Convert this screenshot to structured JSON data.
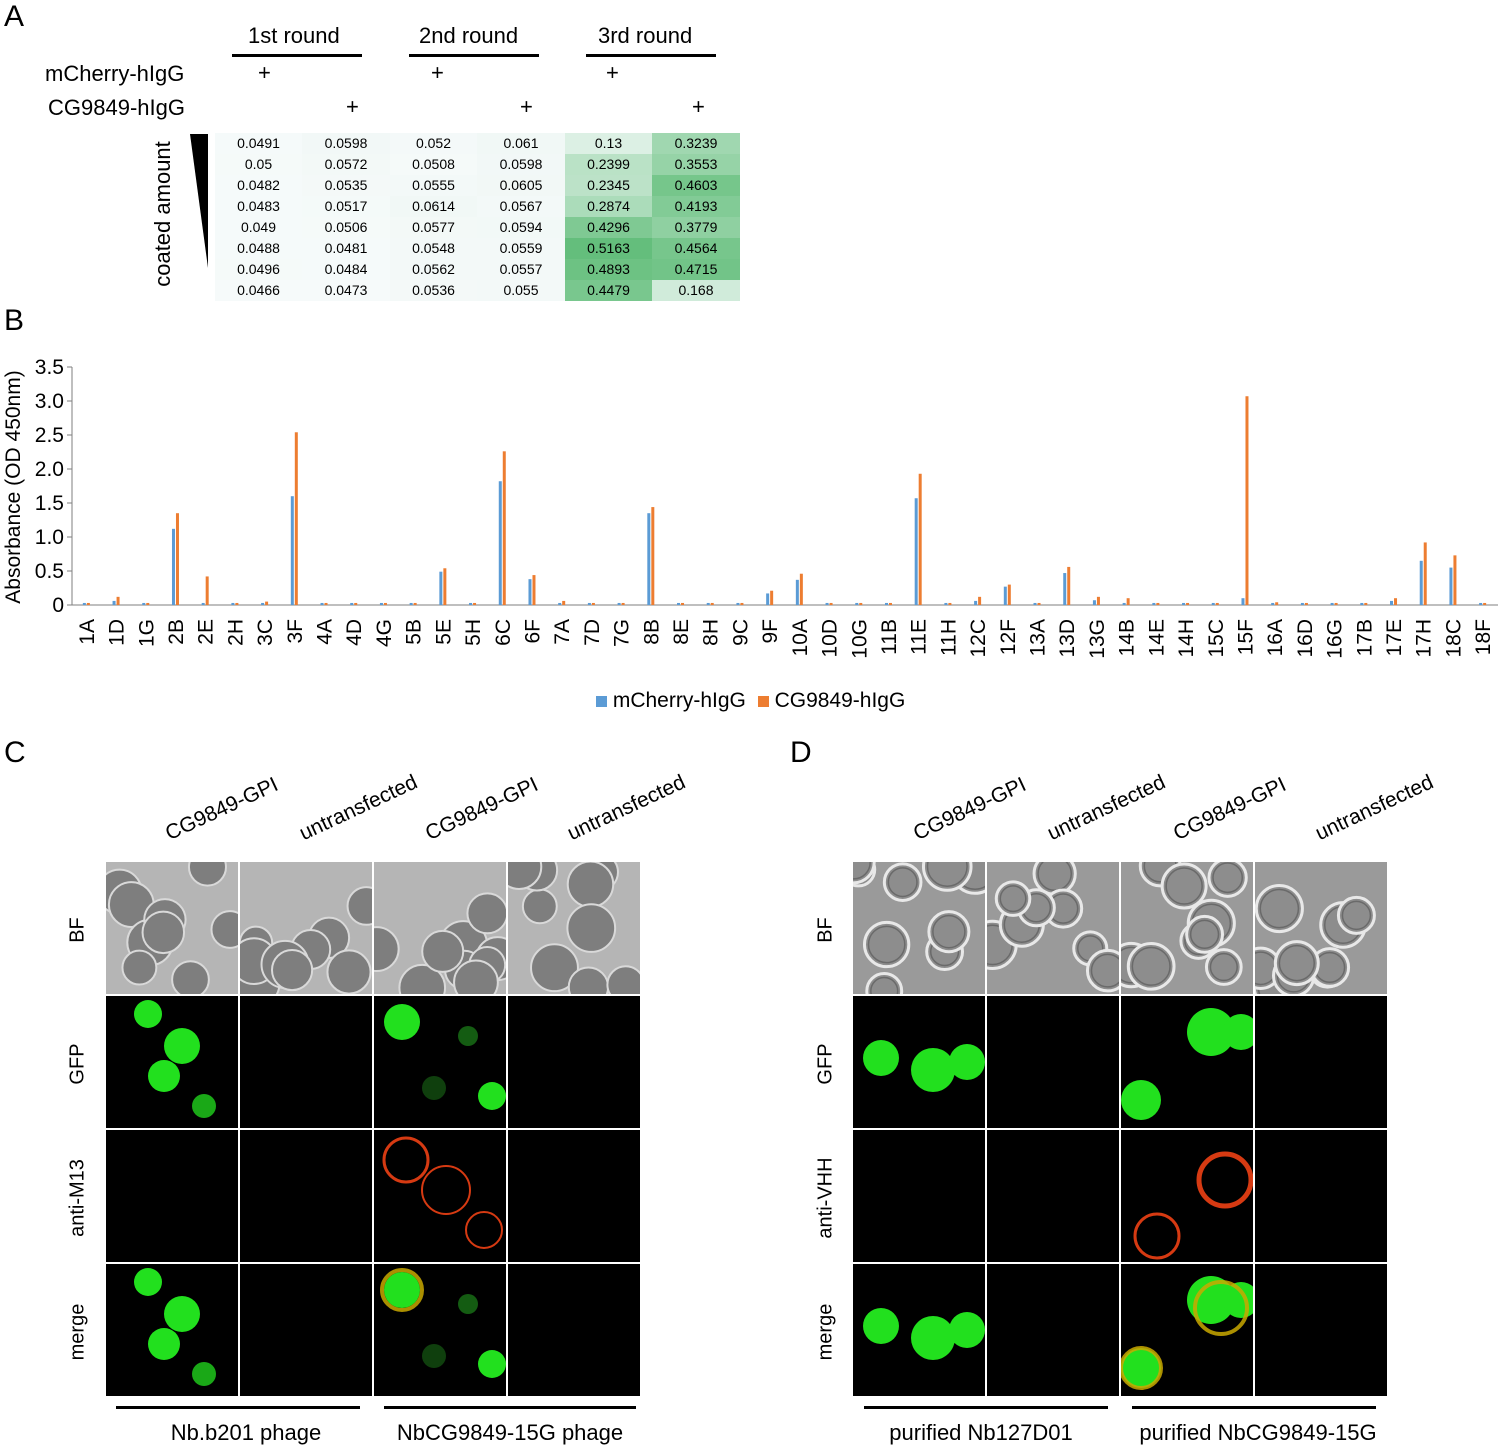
{
  "panelA": {
    "letter": "A",
    "rounds": [
      "1st round",
      "2nd round",
      "3rd round"
    ],
    "row_labels": [
      "mCherry-hIgG",
      "CG9849-hIgG"
    ],
    "plus": "+",
    "gradient_label": "coated amount",
    "table": [
      [
        "0.0491",
        "0.0598",
        "0.052",
        "0.061",
        "0.13",
        "0.3239"
      ],
      [
        "0.05",
        "0.0572",
        "0.0508",
        "0.0598",
        "0.2399",
        "0.3553"
      ],
      [
        "0.0482",
        "0.0535",
        "0.0555",
        "0.0605",
        "0.2345",
        "0.4603"
      ],
      [
        "0.0483",
        "0.0517",
        "0.0614",
        "0.0567",
        "0.2874",
        "0.4193"
      ],
      [
        "0.049",
        "0.0506",
        "0.0577",
        "0.0594",
        "0.4296",
        "0.3779"
      ],
      [
        "0.0488",
        "0.0481",
        "0.0548",
        "0.0559",
        "0.5163",
        "0.4564"
      ],
      [
        "0.0496",
        "0.0484",
        "0.0562",
        "0.0557",
        "0.4893",
        "0.4715"
      ],
      [
        "0.0466",
        "0.0473",
        "0.0536",
        "0.055",
        "0.4479",
        "0.168"
      ]
    ]
  },
  "panelB": {
    "letter": "B"
  },
  "chart_data": {
    "type": "bar",
    "ylabel": "Absorbance (OD 450nm)",
    "ylim": [
      0,
      3.5
    ],
    "yticks": [
      "0",
      "0.5",
      "1.0",
      "1.5",
      "2.0",
      "2.5",
      "3.0",
      "3.5"
    ],
    "categories": [
      "1A",
      "1D",
      "1G",
      "2B",
      "2E",
      "2H",
      "3C",
      "3F",
      "4A",
      "4D",
      "4G",
      "5B",
      "5E",
      "5H",
      "6C",
      "6F",
      "7A",
      "7D",
      "7G",
      "8B",
      "8E",
      "8H",
      "9C",
      "9F",
      "10A",
      "10D",
      "10G",
      "11B",
      "11E",
      "11H",
      "12C",
      "12F",
      "13A",
      "13D",
      "13G",
      "14B",
      "14E",
      "14H",
      "15C",
      "15F",
      "16A",
      "16D",
      "16G",
      "17B",
      "17E",
      "17H",
      "18C",
      "18F"
    ],
    "series": [
      {
        "name": "mCherry-hIgG",
        "color": "#5b9bd5",
        "values": [
          0.03,
          0.06,
          0.03,
          1.12,
          0.03,
          0.03,
          0.03,
          1.6,
          0.03,
          0.03,
          0.03,
          0.03,
          0.49,
          0.03,
          1.82,
          0.38,
          0.03,
          0.03,
          0.03,
          1.35,
          0.03,
          0.03,
          0.03,
          0.17,
          0.37,
          0.03,
          0.03,
          0.03,
          1.57,
          0.03,
          0.06,
          0.27,
          0.03,
          0.47,
          0.07,
          0.03,
          0.03,
          0.03,
          0.03,
          0.1,
          0.03,
          0.03,
          0.03,
          0.03,
          0.06,
          0.65,
          0.55,
          0.03
        ]
      },
      {
        "name": "CG9849-hIgG",
        "color": "#ed7d31",
        "values": [
          0.03,
          0.12,
          0.03,
          1.35,
          0.42,
          0.03,
          0.05,
          2.54,
          0.03,
          0.03,
          0.03,
          0.03,
          0.54,
          0.03,
          2.26,
          0.44,
          0.06,
          0.03,
          0.03,
          1.44,
          0.03,
          0.03,
          0.03,
          0.21,
          0.46,
          0.03,
          0.03,
          0.03,
          1.93,
          0.03,
          0.12,
          0.3,
          0.03,
          0.56,
          0.12,
          0.1,
          0.03,
          0.03,
          0.03,
          3.07,
          0.04,
          0.03,
          0.03,
          0.03,
          0.1,
          0.92,
          0.73,
          0.03
        ]
      }
    ],
    "legend_position": "bottom"
  },
  "panelC": {
    "letter": "C",
    "col_labels": [
      "CG9849-GPI",
      "untransfected",
      "CG9849-GPI",
      "untransfected"
    ],
    "row_labels": [
      "BF",
      "GFP",
      "anti-M13",
      "merge"
    ],
    "group_labels": [
      "Nb.b201 phage",
      "NbCG9849-15G phage"
    ]
  },
  "panelD": {
    "letter": "D",
    "col_labels": [
      "CG9849-GPI",
      "untransfected",
      "CG9849-GPI",
      "untransfected"
    ],
    "row_labels": [
      "BF",
      "GFP",
      "anti-VHH",
      "merge"
    ],
    "group_labels": [
      "purified Nb127D01",
      "purified NbCG9849-15G"
    ]
  }
}
